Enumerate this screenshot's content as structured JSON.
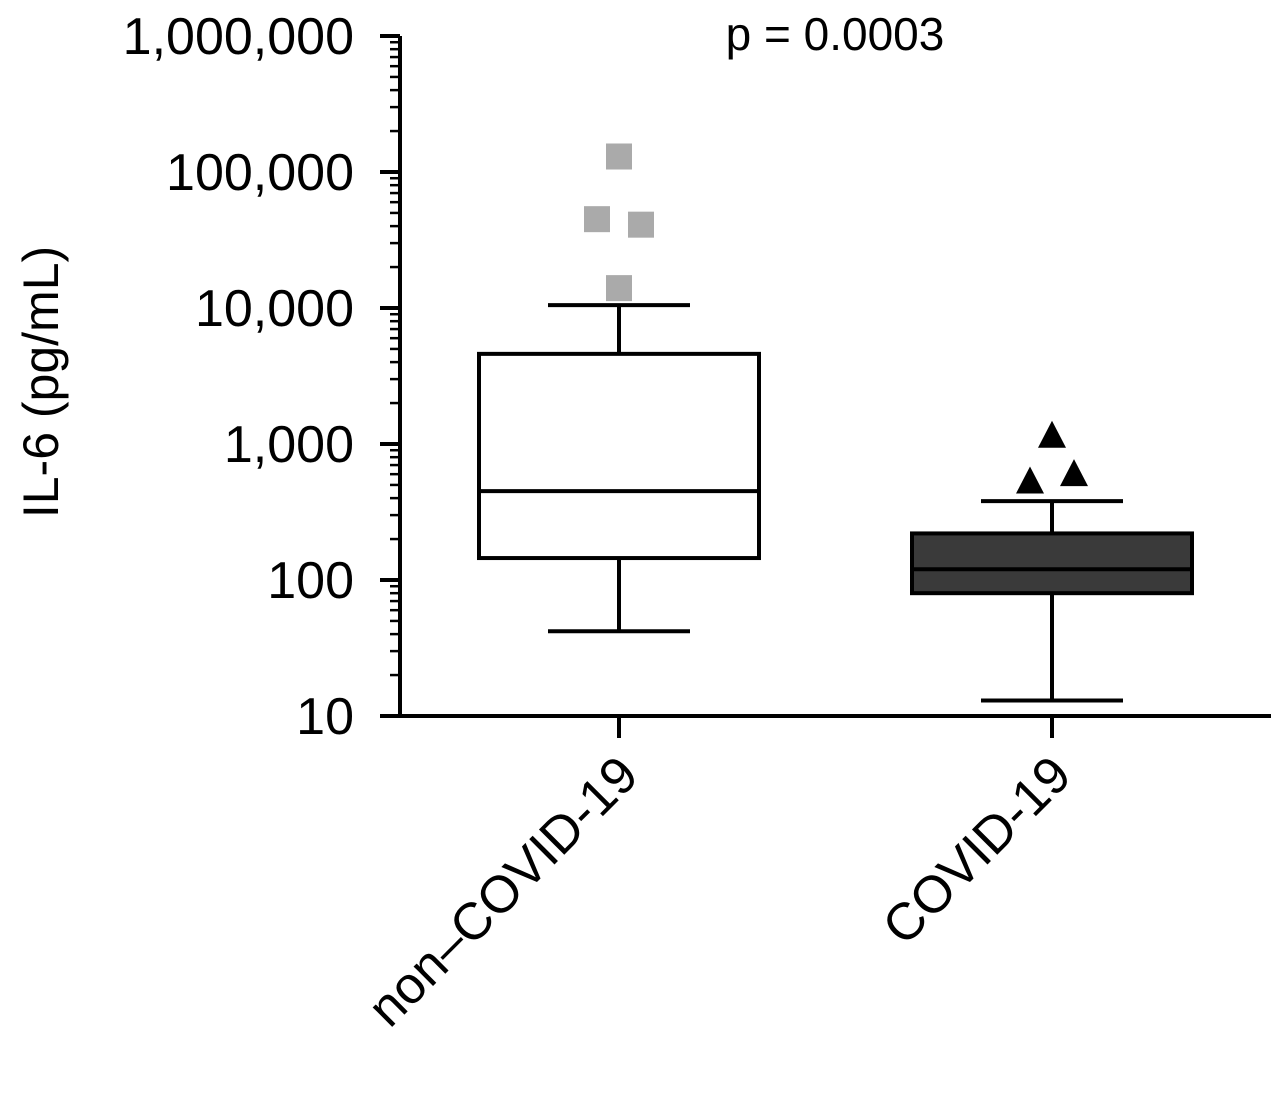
{
  "chart_data": {
    "type": "box",
    "y_scale": "log",
    "ylabel": "IL-6 (pg/mL)",
    "ylim": [
      10,
      1000000
    ],
    "yticks": [
      {
        "value": 10,
        "label": "10"
      },
      {
        "value": 100,
        "label": "100"
      },
      {
        "value": 1000,
        "label": "1,000"
      },
      {
        "value": 10000,
        "label": "10,000"
      },
      {
        "value": 100000,
        "label": "100,000"
      },
      {
        "value": 1000000,
        "label": "1,000,000"
      }
    ],
    "categories": [
      "non–COVID-19",
      "COVID-19"
    ],
    "annotation": "p = 0.0003",
    "grid": false,
    "series": [
      {
        "box_color": "#ffffff",
        "outlier_color": "#aaaaaa",
        "outlier_marker": "square",
        "whisker_low": 42,
        "q1": 145,
        "median": 450,
        "q3": 4600,
        "whisker_high": 10500,
        "outliers": [
          130000,
          45000,
          41000,
          14000
        ]
      },
      {
        "box_color": "#3a3a3a",
        "outlier_color": "#000000",
        "outlier_marker": "triangle",
        "whisker_low": 13,
        "q1": 80,
        "median": 120,
        "q3": 220,
        "whisker_high": 380,
        "outliers": [
          1150,
          530,
          600
        ]
      }
    ]
  }
}
